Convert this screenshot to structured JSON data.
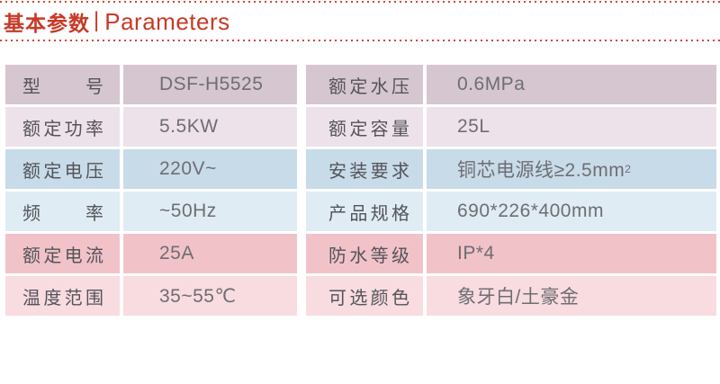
{
  "header": {
    "title_cn": "基本参数",
    "separator": "|",
    "title_en": "Parameters"
  },
  "colors": {
    "accent_red": "#c73a26",
    "row_mauve_dark": "#d6c6d0",
    "row_mauve_light": "#eee2ea",
    "row_blue_dark": "#c8dbe9",
    "row_blue_light": "#e0ecf4",
    "row_pink_dark": "#f1c3c8",
    "row_pink_light": "#f8dce0",
    "label_text": "#54545a",
    "value_text": "#6e6e73"
  },
  "table": {
    "rows": [
      {
        "left_label": "型号",
        "left_value": "DSF-H5525",
        "right_label": "额定水压",
        "right_value": "0.6MPa"
      },
      {
        "left_label": "额定功率",
        "left_value": "5.5KW",
        "right_label": "额定容量",
        "right_value": "25L"
      },
      {
        "left_label": "额定电压",
        "left_value": "220V~",
        "right_label": "安装要求",
        "right_value": "铜芯电源线≥2.5mm",
        "right_value_sup": "2"
      },
      {
        "left_label": "频率",
        "left_value": "~50Hz",
        "right_label": "产品规格",
        "right_value": "690*226*400mm"
      },
      {
        "left_label": "额定电流",
        "left_value": "25A",
        "right_label": "防水等级",
        "right_value": "IP*4"
      },
      {
        "left_label": "温度范围",
        "left_value": "35~55℃",
        "right_label": "可选颜色",
        "right_value": "象牙白/土豪金"
      }
    ]
  }
}
